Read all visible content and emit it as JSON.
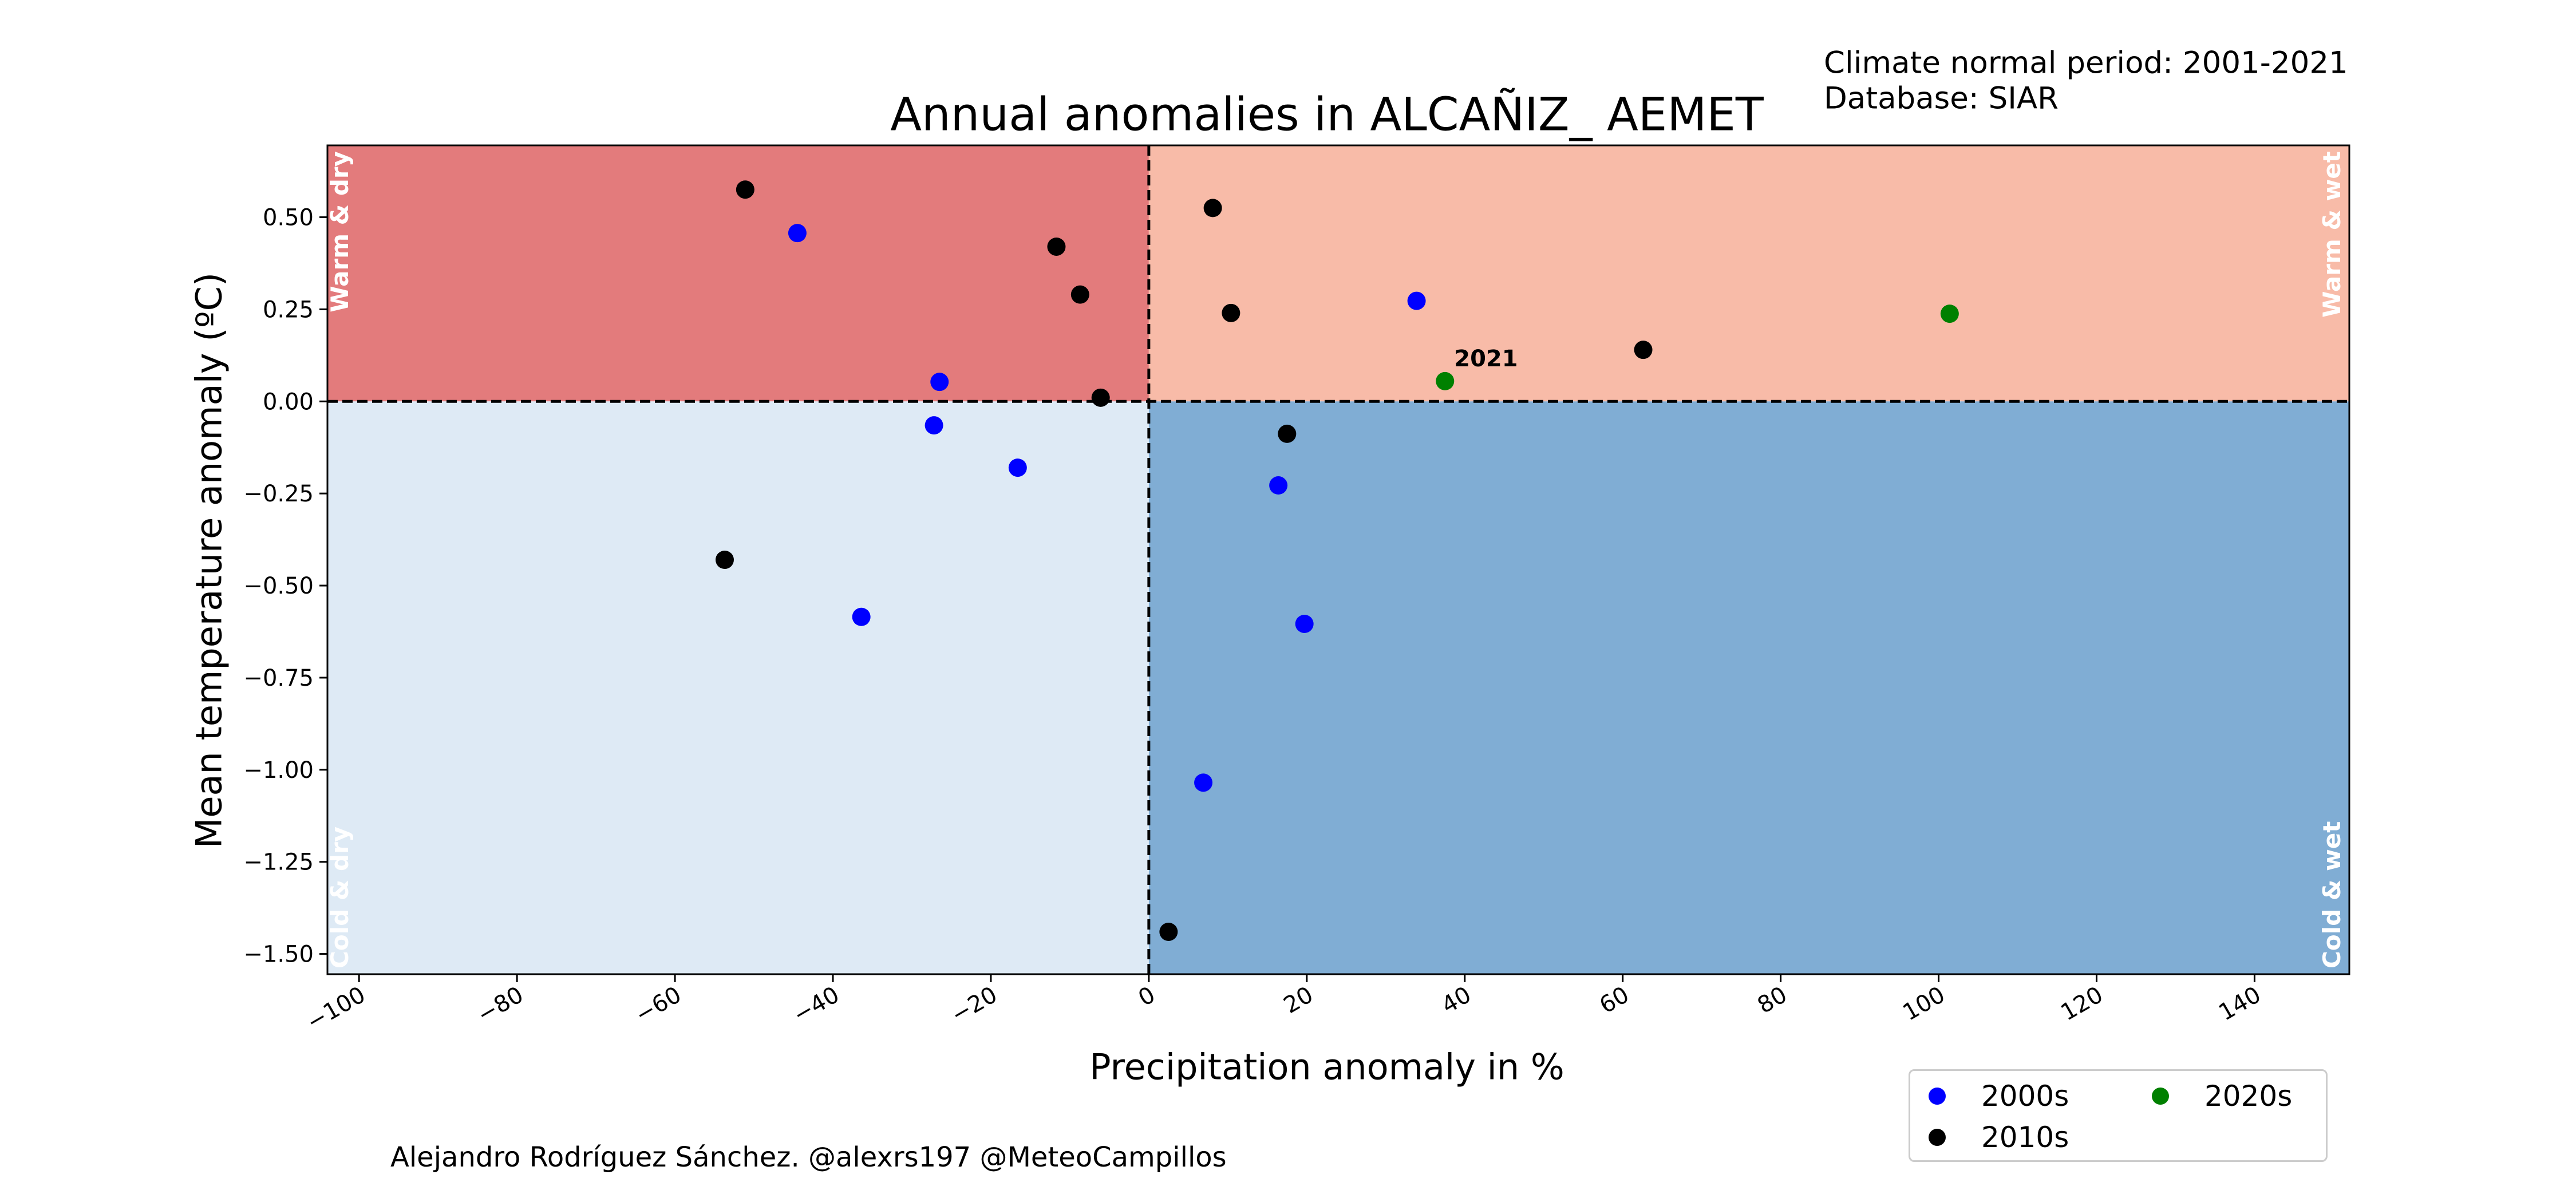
{
  "header": {
    "normal_period": "Climate normal period: 2001-2021",
    "database": "Database: SIAR"
  },
  "footer": {
    "credit": "Alejandro Rodríguez Sánchez. @alexrs197 @MeteoCampillos"
  },
  "chart_data": {
    "type": "scatter",
    "title": "Annual anomalies in ALCAÑIZ_ AEMET",
    "xlabel": "Precipitation anomaly in %",
    "ylabel": "Mean temperature anomaly (ºC)",
    "xlim": [
      -104,
      152
    ],
    "ylim": [
      -1.555,
      0.695
    ],
    "xticks": [
      -100,
      -80,
      -60,
      -40,
      -20,
      0,
      20,
      40,
      60,
      80,
      100,
      120,
      140
    ],
    "xtick_labels": [
      "−100",
      "−80",
      "−60",
      "−40",
      "−20",
      "0",
      "20",
      "40",
      "60",
      "80",
      "100",
      "120",
      "140"
    ],
    "yticks": [
      0.5,
      0.25,
      0.0,
      -0.25,
      -0.5,
      -0.75,
      -1.0,
      -1.25,
      -1.5
    ],
    "ytick_labels": [
      "0.50",
      "0.25",
      "0.00",
      "−0.25",
      "−0.50",
      "−0.75",
      "−1.00",
      "−1.25",
      "−1.50"
    ],
    "grid": false,
    "reference_lines": {
      "x": 0,
      "y": 0,
      "style": "dashed"
    },
    "quadrants": [
      {
        "label": "Warm & dry",
        "color": "#e37b7c"
      },
      {
        "label": "Warm & wet",
        "color": "#f8bba8"
      },
      {
        "label": "Cold & dry",
        "color": "#deeaf5"
      },
      {
        "label": "Cold & wet",
        "color": "#80adD4"
      }
    ],
    "series": [
      {
        "name": "2000s",
        "color": "#0000ff",
        "points": [
          {
            "x": -44.5,
            "y": 0.457
          },
          {
            "x": -26.5,
            "y": 0.053
          },
          {
            "x": -27.2,
            "y": -0.065
          },
          {
            "x": -16.6,
            "y": -0.18
          },
          {
            "x": -36.4,
            "y": -0.585
          },
          {
            "x": 33.9,
            "y": 0.273
          },
          {
            "x": 16.4,
            "y": -0.228
          },
          {
            "x": 19.7,
            "y": -0.604
          },
          {
            "x": 6.9,
            "y": -1.035
          }
        ]
      },
      {
        "name": "2010s",
        "color": "#000000",
        "points": [
          {
            "x": -51.1,
            "y": 0.575
          },
          {
            "x": -11.7,
            "y": 0.42
          },
          {
            "x": -8.7,
            "y": 0.29
          },
          {
            "x": -6.1,
            "y": 0.01
          },
          {
            "x": -53.7,
            "y": -0.43
          },
          {
            "x": 8.1,
            "y": 0.525
          },
          {
            "x": 10.4,
            "y": 0.24
          },
          {
            "x": 17.5,
            "y": -0.088
          },
          {
            "x": 62.6,
            "y": 0.14
          },
          {
            "x": 2.5,
            "y": -1.44
          }
        ]
      },
      {
        "name": "2020s",
        "color": "#008000",
        "points": [
          {
            "x": 37.5,
            "y": 0.055,
            "label": "2021"
          },
          {
            "x": 101.4,
            "y": 0.238
          }
        ]
      }
    ],
    "legend": {
      "position": "bottom-right",
      "columns": 2
    }
  }
}
